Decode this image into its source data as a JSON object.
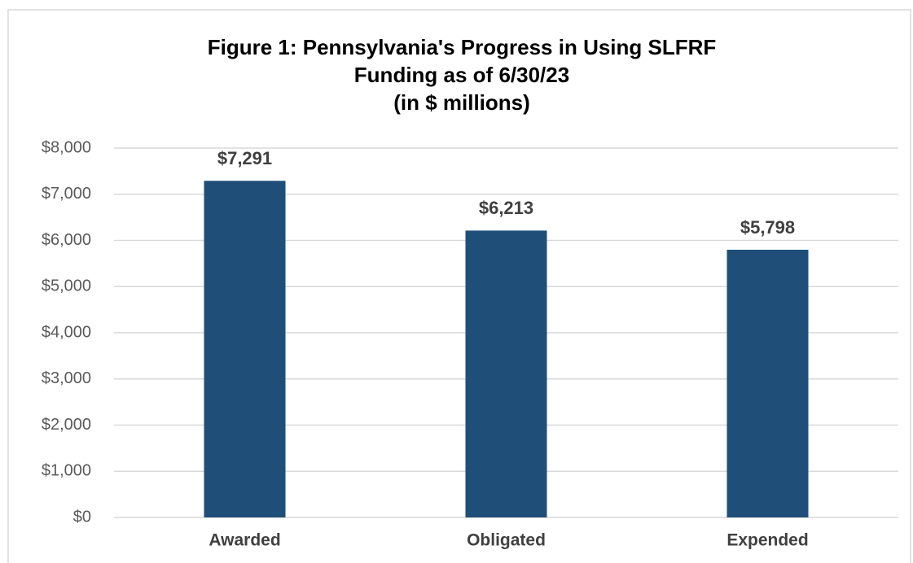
{
  "chart_data": {
    "type": "bar",
    "title": [
      "Figure 1: Pennsylvania's Progress in Using SLFRF",
      "Funding as of 6/30/23",
      "(in $ millions)"
    ],
    "categories": [
      "Awarded",
      "Obligated",
      "Expended"
    ],
    "values": [
      7291,
      6213,
      5798
    ],
    "value_labels": [
      "$7,291",
      "$6,213",
      "$5,798"
    ],
    "color": "#1f4e79",
    "ylim": [
      0,
      8000
    ],
    "yticks": [
      {
        "value": 0,
        "label": "$0"
      },
      {
        "value": 1000,
        "label": "$1,000"
      },
      {
        "value": 2000,
        "label": "$2,000"
      },
      {
        "value": 3000,
        "label": "$3,000"
      },
      {
        "value": 4000,
        "label": "$4,000"
      },
      {
        "value": 5000,
        "label": "$5,000"
      },
      {
        "value": 6000,
        "label": "$6,000"
      },
      {
        "value": 7000,
        "label": "$7,000"
      },
      {
        "value": 8000,
        "label": "$8,000"
      }
    ],
    "grid": true
  }
}
